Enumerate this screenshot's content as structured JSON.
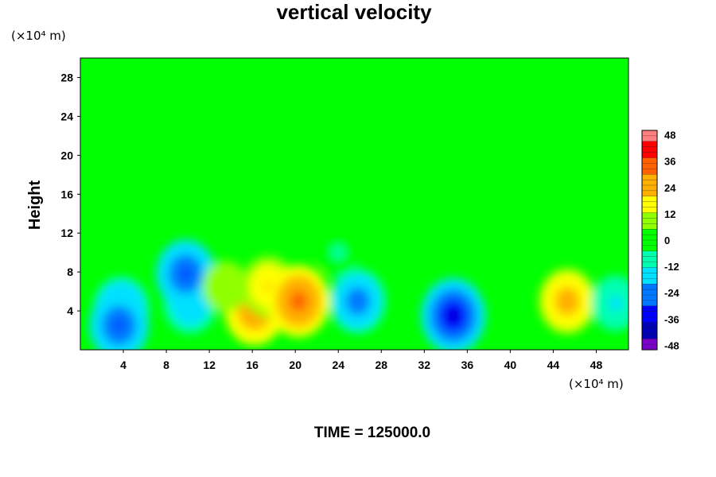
{
  "chart_data": {
    "type": "heatmap",
    "title": "vertical velocity",
    "ylabel": "Height",
    "x_unit": "(×10⁴ m)",
    "y_unit": "(×10⁴ m)",
    "xlim": [
      0,
      51
    ],
    "ylim": [
      0,
      30
    ],
    "x_ticks": [
      4,
      8,
      12,
      16,
      20,
      24,
      28,
      32,
      36,
      40,
      44,
      48
    ],
    "y_ticks": [
      4,
      8,
      12,
      16,
      20,
      24,
      28
    ],
    "colorbar": {
      "range": [
        -50,
        50
      ],
      "ticks": [
        48,
        36,
        24,
        12,
        0,
        -12,
        -24,
        -36,
        -48
      ],
      "colors": [
        "#7a00c8",
        "#0000b4",
        "#0000ff",
        "#0078ff",
        "#00e0ff",
        "#00ffb0",
        "#00ff00",
        "#90ff00",
        "#ffff00",
        "#ffb000",
        "#ff6000",
        "#ff0000",
        "#ff8080"
      ]
    },
    "features": [
      {
        "x": 3.8,
        "y": 4.2,
        "value": -26
      },
      {
        "x": 3.6,
        "y": 2.5,
        "value": -30
      },
      {
        "x": 10.2,
        "y": 4.8,
        "value": -22
      },
      {
        "x": 9.8,
        "y": 7.8,
        "value": -30
      },
      {
        "x": 16.2,
        "y": 4.0,
        "value": 30
      },
      {
        "x": 17.5,
        "y": 6.5,
        "value": 22
      },
      {
        "x": 20.3,
        "y": 5.0,
        "value": 34
      },
      {
        "x": 25.8,
        "y": 5.0,
        "value": -26
      },
      {
        "x": 34.7,
        "y": 3.5,
        "value": -38
      },
      {
        "x": 45.3,
        "y": 5.0,
        "value": 28
      },
      {
        "x": 49.8,
        "y": 4.8,
        "value": -15
      },
      {
        "x": 13.5,
        "y": 6.5,
        "value": 10
      },
      {
        "x": 24.0,
        "y": 10.0,
        "value": -5
      }
    ]
  },
  "footer": {
    "time_text": "TIME = 125000.0"
  }
}
